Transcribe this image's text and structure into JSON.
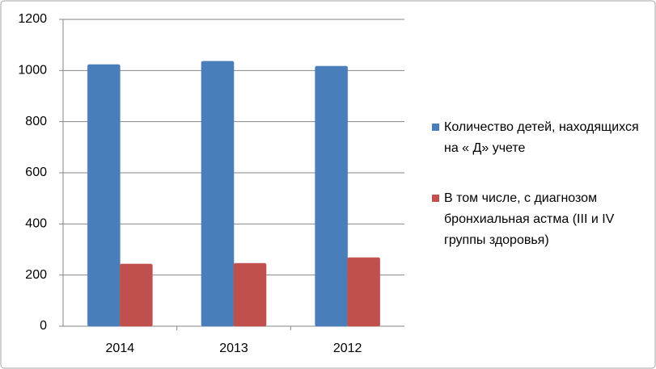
{
  "chart_data": {
    "type": "bar",
    "categories": [
      "2014",
      "2013",
      "2012"
    ],
    "series": [
      {
        "name": "Количество детей, находящихся на « Д» учете",
        "color": "#4a7ebb",
        "values": [
          1023,
          1036,
          1017
        ]
      },
      {
        "name": "В том числе, с диагнозом бронхиальная астма (III и IV группы здоровья)",
        "color": "#c0504d",
        "values": [
          243,
          246,
          268
        ]
      }
    ],
    "ylim": [
      0,
      1200
    ],
    "yticks": [
      0,
      200,
      400,
      600,
      800,
      1000,
      1200
    ],
    "grid": true,
    "legend": "right"
  }
}
